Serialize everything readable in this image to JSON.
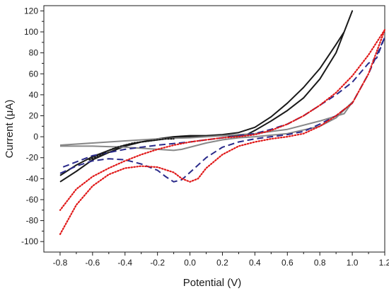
{
  "chart_data": {
    "type": "line",
    "title": "",
    "xlabel": "Potential (V)",
    "ylabel": "Current (μA)",
    "xlim": [
      -0.9,
      1.2
    ],
    "ylim": [
      -110,
      125
    ],
    "xticks": [
      -0.8,
      -0.6,
      -0.4,
      -0.2,
      0.0,
      0.2,
      0.4,
      0.6,
      0.8,
      1.0,
      1.2
    ],
    "xtick_labels": [
      "-0.8",
      "-0.6",
      "-0.4",
      "-0.2",
      "0.0",
      "0.2",
      "0.4",
      "0.6",
      "0.8",
      "1.0",
      "1.2"
    ],
    "yticks": [
      -100,
      -80,
      -60,
      -40,
      -20,
      0,
      20,
      40,
      60,
      80,
      100,
      120
    ],
    "ytick_labels": [
      "-100",
      "-80",
      "-60",
      "-40",
      "-20",
      "0",
      "20",
      "40",
      "60",
      "80",
      "100",
      "120"
    ],
    "grid": false,
    "legend": "none",
    "series": [
      {
        "color": "#1a1a1a",
        "dash": "solid",
        "x": [
          -0.8,
          -0.7,
          -0.6,
          -0.5,
          -0.4,
          -0.3,
          -0.2,
          -0.1,
          0.0,
          0.1,
          0.2,
          0.3,
          0.35,
          0.4,
          0.5,
          0.6,
          0.7,
          0.8,
          0.9,
          1.0,
          0.95,
          0.9,
          0.8,
          0.7,
          0.6,
          0.5,
          0.4,
          0.3,
          0.2,
          0.1,
          0.0,
          -0.1,
          -0.2,
          -0.3,
          -0.4,
          -0.5,
          -0.6,
          -0.7,
          -0.8
        ],
        "y": [
          -43,
          -33,
          -22,
          -15,
          -9,
          -5,
          -2,
          0,
          1,
          1,
          1,
          1,
          2,
          6,
          15,
          25,
          37,
          55,
          80,
          120,
          100,
          88,
          65,
          47,
          32,
          19,
          9,
          4,
          2,
          1,
          0,
          -1,
          -3,
          -5,
          -8,
          -13,
          -19,
          -27,
          -37
        ]
      },
      {
        "color": "#888888",
        "dash": "solid",
        "x": [
          -0.8,
          -0.6,
          -0.4,
          -0.2,
          -0.1,
          -0.05,
          0.0,
          0.1,
          0.2,
          0.3,
          0.4,
          0.6,
          0.8,
          0.9,
          1.0,
          0.95,
          0.8,
          0.6,
          0.4,
          0.2,
          0.0,
          -0.2,
          -0.4,
          -0.6,
          -0.8
        ],
        "y": [
          -9,
          -9,
          -10,
          -12,
          -13,
          -12,
          -10,
          -6,
          -3,
          -1,
          0,
          3,
          10,
          18,
          33,
          22,
          15,
          7,
          3,
          1,
          -1,
          -2,
          -4,
          -6,
          -8
        ]
      },
      {
        "color": "#2a2a8a",
        "dash": "dash",
        "x": [
          -0.8,
          -0.7,
          -0.6,
          -0.5,
          -0.4,
          -0.3,
          -0.2,
          -0.15,
          -0.1,
          -0.05,
          0.0,
          0.1,
          0.2,
          0.3,
          0.4,
          0.5,
          0.6,
          0.7,
          0.8,
          0.9,
          1.0,
          1.1,
          1.2,
          1.15,
          1.1,
          1.0,
          0.9,
          0.8,
          0.7,
          0.6,
          0.5,
          0.4,
          0.3,
          0.2,
          0.1,
          0.0,
          -0.2,
          -0.4,
          -0.6,
          -0.8
        ],
        "y": [
          -35,
          -28,
          -23,
          -21,
          -22,
          -26,
          -32,
          -38,
          -43,
          -41,
          -34,
          -20,
          -10,
          -5,
          -2,
          0,
          2,
          5,
          12,
          20,
          32,
          60,
          95,
          75,
          70,
          52,
          40,
          30,
          20,
          12,
          7,
          3,
          1,
          -1,
          -3,
          -5,
          -8,
          -12,
          -18,
          -30
        ]
      },
      {
        "color": "#e01818",
        "dash": "dot",
        "x": [
          -0.8,
          -0.7,
          -0.6,
          -0.5,
          -0.4,
          -0.3,
          -0.2,
          -0.1,
          -0.05,
          0.0,
          0.05,
          0.1,
          0.2,
          0.3,
          0.4,
          0.5,
          0.6,
          0.7,
          0.8,
          0.9,
          1.0,
          1.1,
          1.2,
          1.1,
          1.0,
          0.9,
          0.8,
          0.7,
          0.6,
          0.5,
          0.4,
          0.3,
          0.2,
          0.1,
          0.0,
          -0.1,
          -0.2,
          -0.3,
          -0.4,
          -0.5,
          -0.6,
          -0.7,
          -0.8
        ],
        "y": [
          -93,
          -65,
          -47,
          -36,
          -30,
          -28,
          -29,
          -34,
          -40,
          -43,
          -40,
          -30,
          -17,
          -9,
          -5,
          -2,
          0,
          3,
          10,
          20,
          32,
          60,
          102,
          78,
          58,
          42,
          30,
          20,
          12,
          6,
          2,
          0,
          -1,
          -3,
          -5,
          -8,
          -12,
          -17,
          -23,
          -30,
          -38,
          -50,
          -70
        ]
      },
      {
        "color": "#1a1a1a",
        "dash": "dot",
        "x": [
          -0.62,
          -0.55,
          -0.5,
          -0.45,
          -0.4,
          -0.35,
          -0.3,
          -0.25,
          -0.2,
          -0.15,
          -0.1
        ],
        "y": [
          -22,
          -17,
          -13,
          -10,
          -8,
          -6,
          -5,
          -4,
          -3,
          -2,
          -2
        ]
      }
    ]
  }
}
